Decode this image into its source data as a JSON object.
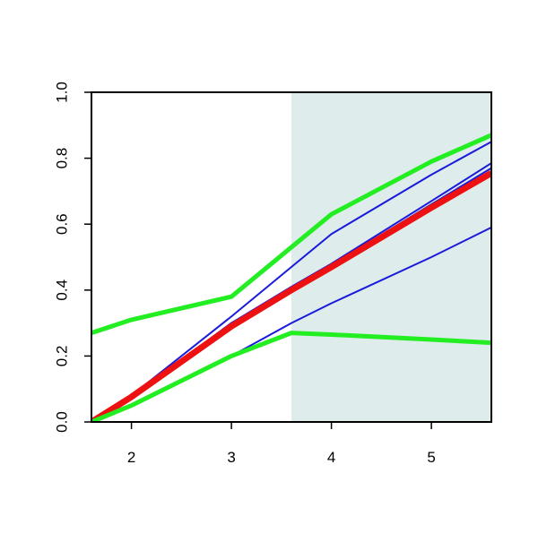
{
  "chart_data": {
    "type": "line",
    "x": [
      1.6,
      2,
      3,
      3.6,
      4,
      5,
      5.6
    ],
    "xlim": [
      1.6,
      5.6
    ],
    "ylim": [
      0,
      1
    ],
    "xticks": [
      2,
      3,
      4,
      5
    ],
    "yticks": [
      {
        "value": 0,
        "label": "0.0"
      },
      {
        "value": 0.2,
        "label": "0.2"
      },
      {
        "value": 0.4,
        "label": "0.4"
      },
      {
        "value": 0.6,
        "label": "0.6"
      },
      {
        "value": 0.8,
        "label": "0.8"
      },
      {
        "value": 1,
        "label": "1.0"
      }
    ],
    "shade": {
      "xrange": [
        3.6,
        5.6
      ],
      "color": "#deeceb"
    },
    "series": [
      {
        "color": "#1a1adb",
        "width": 2,
        "values": [
          0,
          0.08,
          0.32,
          0.47,
          0.57,
          0.75,
          0.85
        ]
      },
      {
        "color": "#1a1adb",
        "width": 2,
        "values": [
          0,
          0.076,
          0.3,
          0.41,
          0.48,
          0.67,
          0.785
        ]
      },
      {
        "color": "#1a1adb",
        "width": 2,
        "values": [
          0,
          0.076,
          0.3,
          0.4,
          0.475,
          0.66,
          0.77
        ]
      },
      {
        "color": "#1a1adb",
        "width": 2,
        "values": [
          0,
          0.05,
          0.2,
          0.3,
          0.36,
          0.5,
          0.59
        ]
      },
      {
        "color": "#ee1111",
        "width": 7,
        "values": [
          0,
          0.076,
          0.29,
          0.4,
          0.47,
          0.65,
          0.755
        ]
      },
      {
        "color": "#22ee22",
        "width": 5,
        "values": [
          0.27,
          0.31,
          0.38,
          0.53,
          0.63,
          0.79,
          0.87
        ]
      },
      {
        "color": "#22ee22",
        "width": 5,
        "values": [
          0,
          0.05,
          0.2,
          0.27,
          0.265,
          0.25,
          0.24
        ]
      }
    ]
  }
}
